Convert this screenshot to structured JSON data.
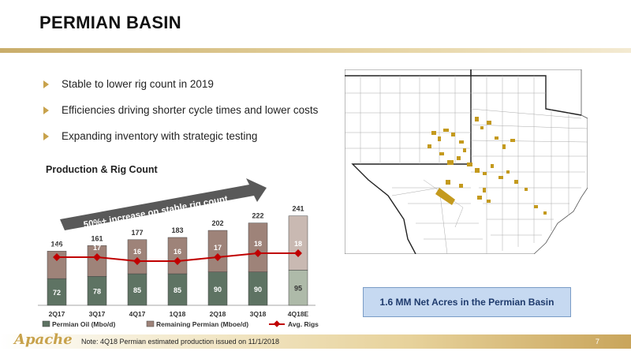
{
  "title": "PERMIAN BASIN",
  "bullets": [
    "Stable to lower rig count in 2019",
    "Efficiencies driving shorter cycle times and lower costs",
    "Expanding inventory with strategic testing"
  ],
  "chart_title": "Production & Rig Count",
  "chart_data": {
    "type": "bar",
    "stacked": true,
    "categories": [
      "2Q17",
      "3Q17",
      "4Q17",
      "1Q18",
      "2Q18",
      "3Q18",
      "4Q18E"
    ],
    "totals": [
      146,
      161,
      177,
      183,
      202,
      222,
      241
    ],
    "series": [
      {
        "name": "Permian Oil (Mbo/d)",
        "values": [
          72,
          78,
          85,
          85,
          90,
          90,
          95
        ],
        "color": "#5e7363",
        "last_color": "#aebaa9"
      },
      {
        "name": "Remaining Permian (Mboe/d)",
        "values": [
          74,
          83,
          92,
          98,
          112,
          132,
          146
        ],
        "color": "#9e8379",
        "last_color": "#c9b9b2"
      },
      {
        "name": "Avg. Rigs",
        "type": "line",
        "values": [
          17,
          17,
          16,
          16,
          17,
          18,
          18
        ],
        "color": "#c00000"
      }
    ],
    "annotation": "50%+ increase on stable rig count",
    "legend_position": "bottom"
  },
  "acres_box": "1.6 MM Net Acres in the Permian Basin",
  "footer": {
    "logo": "Apache",
    "note": "Note: 4Q18 Permian estimated production issued on 11/1/2018",
    "page": "7"
  }
}
